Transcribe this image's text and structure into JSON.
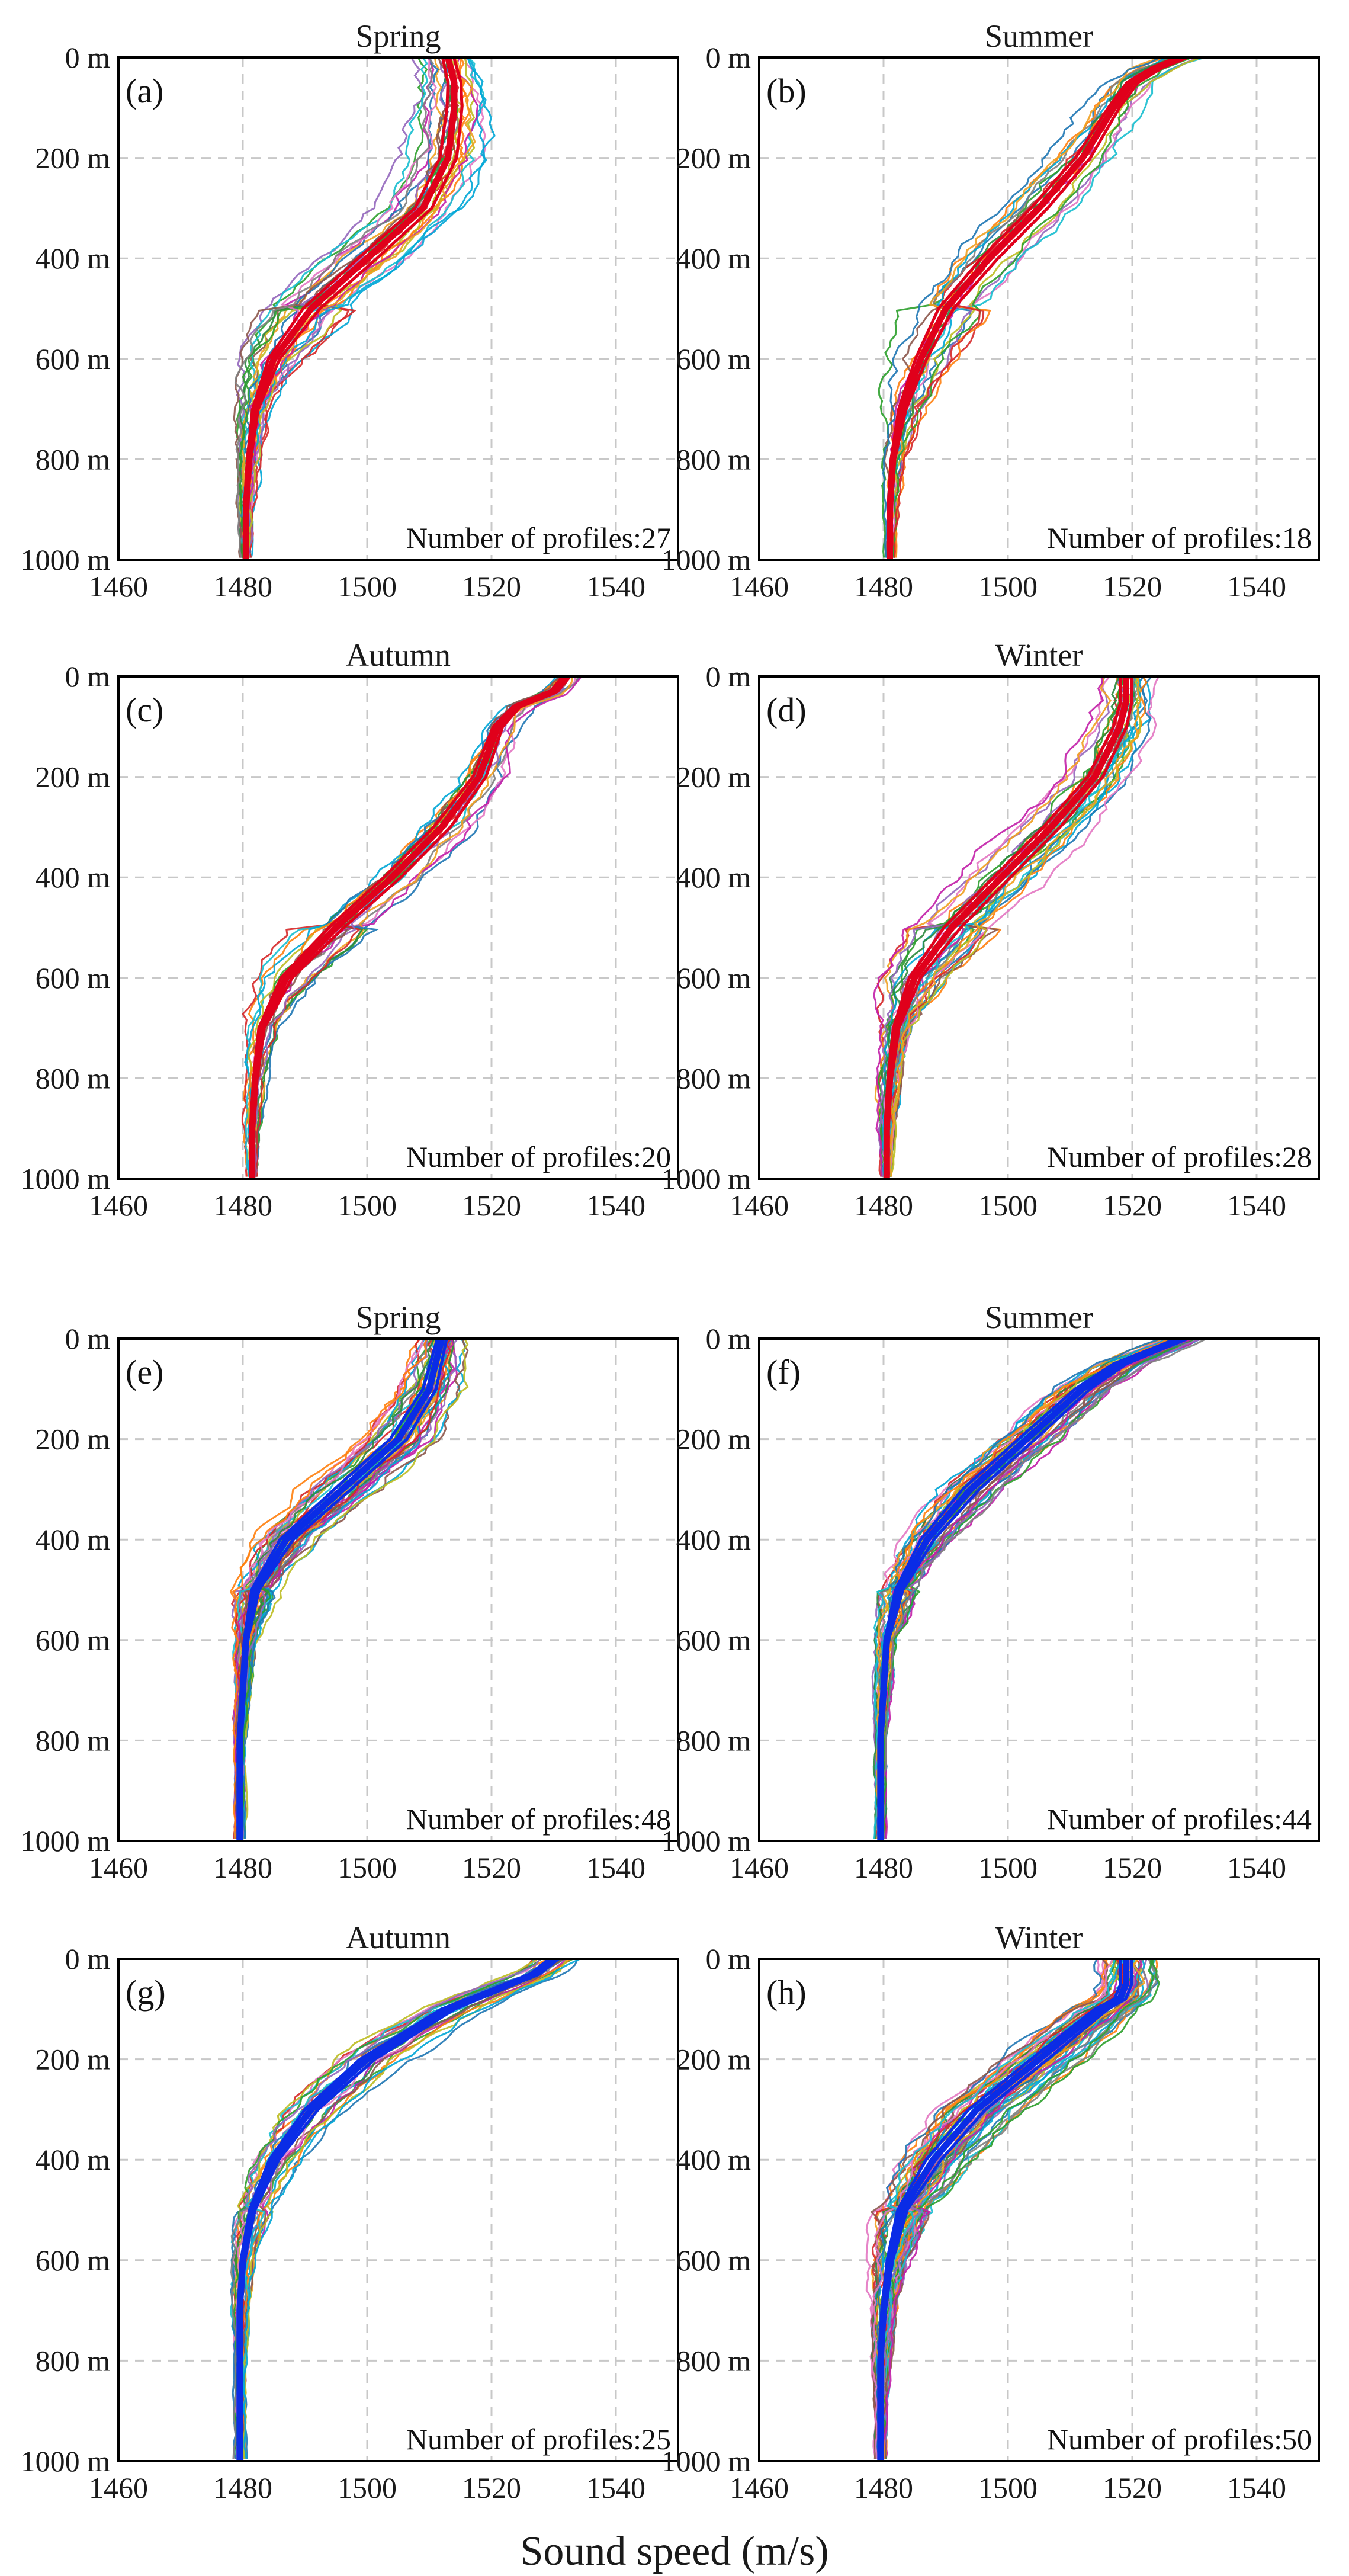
{
  "figure": {
    "xlabel": "Sound speed (m/s)"
  },
  "colors": {
    "mean_red": "#e0001b",
    "mean_blue": "#0a2ce6",
    "grid": "#c8c8c8",
    "profile_palette": [
      "#1f77b4",
      "#ff7f0e",
      "#2ca02c",
      "#d62728",
      "#9467bd",
      "#8c564b",
      "#e377c2",
      "#17becf",
      "#bcbd22",
      "#7f7f7f",
      "#00a6d6",
      "#c21fa8",
      "#f0a020",
      "#2b8a3e"
    ]
  },
  "chart_data": [
    {
      "type": "line",
      "panel": "(a)",
      "title": "Spring",
      "annotation": "Number of profiles:27",
      "n_profiles": 27,
      "mean_color": "red",
      "xlim": [
        1460,
        1550
      ],
      "ylim": [
        0,
        1000
      ],
      "xticks": [
        1460,
        1480,
        1500,
        1520,
        1540
      ],
      "yticks": [
        0,
        200,
        400,
        600,
        800,
        1000
      ],
      "ytick_labels": [
        "0 m",
        "200 m",
        "400 m",
        "600 m",
        "800 m",
        "1000 m"
      ],
      "mean_profile": {
        "depth": [
          0,
          50,
          100,
          200,
          300,
          400,
          500,
          600,
          700,
          800,
          900,
          1000
        ],
        "speed": [
          1513,
          1514,
          1514,
          1513,
          1509,
          1500,
          1491,
          1485,
          1482,
          1481,
          1480.5,
          1480.5
        ]
      },
      "spread": [
        6,
        7,
        8,
        9,
        9,
        10,
        9,
        6,
        3,
        2,
        1.5,
        1
      ],
      "grid": true
    },
    {
      "type": "line",
      "panel": "(b)",
      "title": "Summer",
      "annotation": "Number of profiles:18",
      "n_profiles": 18,
      "mean_color": "red",
      "xlim": [
        1460,
        1550
      ],
      "ylim": [
        0,
        1000
      ],
      "xticks": [
        1460,
        1480,
        1500,
        1520,
        1540
      ],
      "yticks": [
        0,
        200,
        400,
        600,
        800,
        1000
      ],
      "ytick_labels": [
        "0 m",
        "200 m",
        "400 m",
        "600 m",
        "800 m",
        "1000 m"
      ],
      "mean_profile": {
        "depth": [
          0,
          20,
          50,
          100,
          200,
          300,
          400,
          500,
          600,
          700,
          800,
          900,
          1000
        ],
        "speed": [
          1528,
          1524,
          1520,
          1517,
          1512,
          1505,
          1497,
          1490,
          1486,
          1483,
          1481.5,
          1481,
          1481
        ]
      },
      "spread": [
        6,
        6,
        6,
        6,
        8,
        9,
        9,
        8,
        6,
        4,
        2,
        1.5,
        1
      ],
      "grid": true
    },
    {
      "type": "line",
      "panel": "(c)",
      "title": "Autumn",
      "annotation": "Number of profiles:20",
      "n_profiles": 20,
      "mean_color": "red",
      "xlim": [
        1460,
        1550
      ],
      "ylim": [
        0,
        1000
      ],
      "xticks": [
        1460,
        1480,
        1500,
        1520,
        1540
      ],
      "yticks": [
        0,
        200,
        400,
        600,
        800,
        1000
      ],
      "ytick_labels": [
        "0 m",
        "200 m",
        "400 m",
        "600 m",
        "800 m",
        "1000 m"
      ],
      "mean_profile": {
        "depth": [
          0,
          30,
          60,
          100,
          200,
          300,
          400,
          500,
          600,
          700,
          800,
          900,
          1000
        ],
        "speed": [
          1532,
          1530,
          1524,
          1521,
          1518,
          1512,
          1504,
          1495,
          1487,
          1483,
          1482,
          1481.5,
          1481.5
        ]
      },
      "spread": [
        4,
        4,
        4,
        5,
        7,
        9,
        9,
        8,
        6,
        3,
        2,
        1.5,
        1
      ],
      "grid": true
    },
    {
      "type": "line",
      "panel": "(d)",
      "title": "Winter",
      "annotation": "Number of profiles:28",
      "n_profiles": 28,
      "mean_color": "red",
      "xlim": [
        1460,
        1550
      ],
      "ylim": [
        0,
        1000
      ],
      "xticks": [
        1460,
        1480,
        1500,
        1520,
        1540
      ],
      "yticks": [
        0,
        200,
        400,
        600,
        800,
        1000
      ],
      "ytick_labels": [
        "0 m",
        "200 m",
        "400 m",
        "600 m",
        "800 m",
        "1000 m"
      ],
      "mean_profile": {
        "depth": [
          0,
          50,
          100,
          200,
          300,
          400,
          500,
          600,
          700,
          800,
          900,
          1000
        ],
        "speed": [
          1519,
          1519,
          1518,
          1514,
          1507,
          1499,
          1491,
          1485,
          1482,
          1481,
          1480.5,
          1480.5
        ]
      },
      "spread": [
        6,
        6,
        7,
        8,
        9,
        9,
        9,
        6,
        3,
        2,
        1.5,
        1
      ],
      "grid": true
    },
    {
      "type": "line",
      "panel": "(e)",
      "title": "Spring",
      "annotation": "Number of profiles:48",
      "n_profiles": 48,
      "mean_color": "blue",
      "xlim": [
        1460,
        1550
      ],
      "ylim": [
        0,
        1000
      ],
      "xticks": [
        1460,
        1480,
        1500,
        1520,
        1540
      ],
      "yticks": [
        0,
        200,
        400,
        600,
        800,
        1000
      ],
      "ytick_labels": [
        "0 m",
        "200 m",
        "400 m",
        "600 m",
        "800 m",
        "1000 m"
      ],
      "mean_profile": {
        "depth": [
          0,
          50,
          100,
          200,
          300,
          400,
          500,
          600,
          700,
          800,
          900,
          1000
        ],
        "speed": [
          1512,
          1511,
          1510,
          1505,
          1496,
          1487,
          1482,
          1480.5,
          1480,
          1479.5,
          1479.5,
          1479.5
        ]
      },
      "spread": [
        5,
        6,
        7,
        9,
        9,
        7,
        4,
        2,
        1.5,
        1,
        1,
        1
      ],
      "grid": true
    },
    {
      "type": "line",
      "panel": "(f)",
      "title": "Summer",
      "annotation": "Number of profiles:44",
      "n_profiles": 44,
      "mean_color": "blue",
      "xlim": [
        1460,
        1550
      ],
      "ylim": [
        0,
        1000
      ],
      "xticks": [
        1460,
        1480,
        1500,
        1520,
        1540
      ],
      "yticks": [
        0,
        200,
        400,
        600,
        800,
        1000
      ],
      "ytick_labels": [
        "0 m",
        "200 m",
        "400 m",
        "600 m",
        "800 m",
        "1000 m"
      ],
      "mean_profile": {
        "depth": [
          0,
          20,
          50,
          100,
          200,
          300,
          400,
          500,
          600,
          700,
          800,
          900,
          1000
        ],
        "speed": [
          1528,
          1524,
          1518,
          1512,
          1503,
          1494,
          1487,
          1482.5,
          1480.5,
          1480,
          1479.5,
          1479.5,
          1479.5
        ]
      },
      "spread": [
        6,
        6,
        7,
        8,
        9,
        9,
        7,
        4,
        2,
        1.5,
        1,
        1,
        1
      ],
      "grid": true
    },
    {
      "type": "line",
      "panel": "(g)",
      "title": "Autumn",
      "annotation": "Number of profiles:25",
      "n_profiles": 25,
      "mean_color": "blue",
      "xlim": [
        1460,
        1550
      ],
      "ylim": [
        0,
        1000
      ],
      "xticks": [
        1460,
        1480,
        1500,
        1520,
        1540
      ],
      "yticks": [
        0,
        200,
        400,
        600,
        800,
        1000
      ],
      "ytick_labels": [
        "0 m",
        "200 m",
        "400 m",
        "600 m",
        "800 m",
        "1000 m"
      ],
      "mean_profile": {
        "depth": [
          0,
          30,
          60,
          100,
          200,
          300,
          400,
          500,
          600,
          700,
          800,
          900,
          1000
        ],
        "speed": [
          1530,
          1527,
          1521,
          1513,
          1500,
          1491,
          1485,
          1481.5,
          1480,
          1479.5,
          1479.5,
          1479.5,
          1479.5
        ]
      },
      "spread": [
        5,
        5,
        6,
        7,
        8,
        7,
        5,
        3,
        2,
        1.5,
        1,
        1,
        1
      ],
      "grid": true
    },
    {
      "type": "line",
      "panel": "(h)",
      "title": "Winter",
      "annotation": "Number of profiles:50",
      "n_profiles": 50,
      "mean_color": "blue",
      "xlim": [
        1460,
        1550
      ],
      "ylim": [
        0,
        1000
      ],
      "xticks": [
        1460,
        1480,
        1500,
        1520,
        1540
      ],
      "yticks": [
        0,
        200,
        400,
        600,
        800,
        1000
      ],
      "ytick_labels": [
        "0 m",
        "200 m",
        "400 m",
        "600 m",
        "800 m",
        "1000 m"
      ],
      "mean_profile": {
        "depth": [
          0,
          50,
          80,
          100,
          200,
          300,
          400,
          500,
          600,
          700,
          800,
          900,
          1000
        ],
        "speed": [
          1519,
          1519,
          1518,
          1515,
          1505,
          1495,
          1488,
          1483,
          1481,
          1480,
          1479.5,
          1479.5,
          1479.5
        ]
      },
      "spread": [
        6,
        6,
        6,
        7,
        9,
        9,
        8,
        5,
        3,
        2,
        1.5,
        1,
        1
      ],
      "grid": true
    }
  ]
}
